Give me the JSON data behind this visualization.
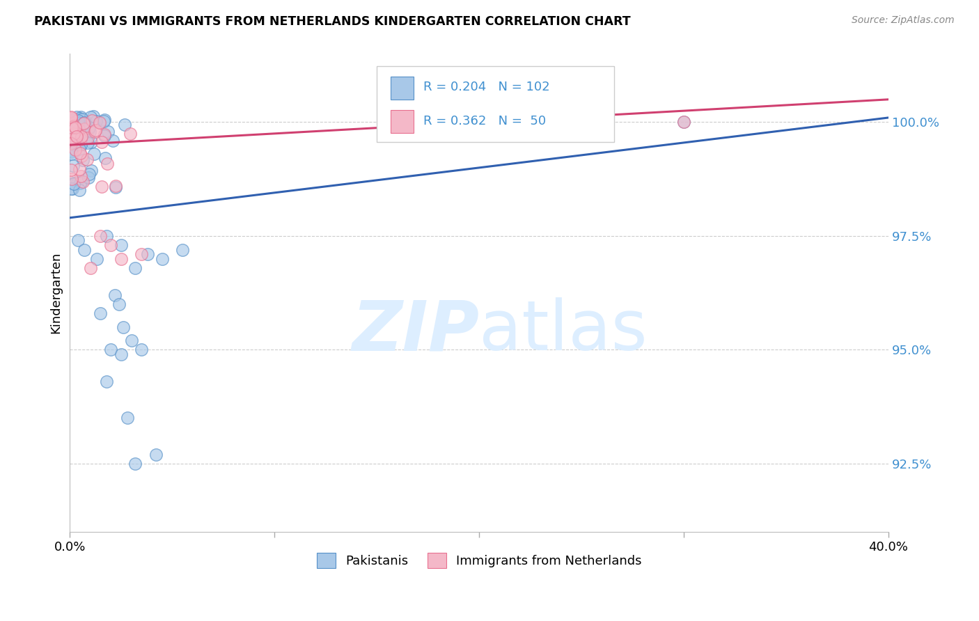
{
  "title": "PAKISTANI VS IMMIGRANTS FROM NETHERLANDS KINDERGARTEN CORRELATION CHART",
  "source": "Source: ZipAtlas.com",
  "ylabel": "Kindergarten",
  "y_ticks": [
    92.5,
    95.0,
    97.5,
    100.0
  ],
  "y_tick_labels": [
    "92.5%",
    "95.0%",
    "97.5%",
    "100.0%"
  ],
  "xlim": [
    0.0,
    40.0
  ],
  "ylim": [
    91.0,
    101.5
  ],
  "legend_blue_R": 0.204,
  "legend_blue_N": 102,
  "legend_pink_R": 0.362,
  "legend_pink_N": 50,
  "color_blue_fill": "#a8c8e8",
  "color_pink_fill": "#f4b8c8",
  "color_blue_edge": "#5590c8",
  "color_pink_edge": "#e87090",
  "color_blue_line": "#3060b0",
  "color_pink_line": "#d04070",
  "color_ytick": "#4090d0",
  "color_legend_num": "#4090d0",
  "watermark_color": "#ddeeff",
  "blue_line_x0": 0,
  "blue_line_y0": 97.9,
  "blue_line_x1": 40,
  "blue_line_y1": 100.1,
  "pink_line_x0": 0,
  "pink_line_y0": 99.5,
  "pink_line_x1": 40,
  "pink_line_y1": 100.5
}
